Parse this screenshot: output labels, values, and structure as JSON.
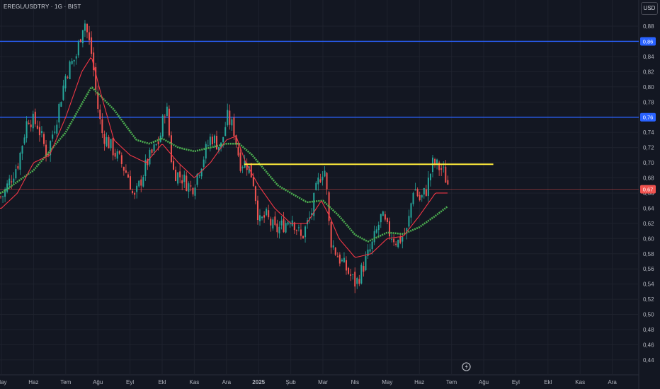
{
  "header": {
    "title": "EREGL/USDTRY · 1G · BIST",
    "currency_button": "USD"
  },
  "colors": {
    "background": "#131722",
    "grid": "#1e222d",
    "axis_text": "#b2b5be",
    "up": "#26a69a",
    "down": "#ef5350",
    "sma_fast": "#f23645",
    "sma_slow": "#4caf50",
    "resistance": "#2962ff",
    "breakout_line": "#ffeb3b",
    "current_line": "#ef5350"
  },
  "chart_data": {
    "type": "candlestick",
    "y_ticks": [
      "0,88",
      "0,86",
      "0,84",
      "0,82",
      "0,80",
      "0,78",
      "0,76",
      "0,74",
      "0,72",
      "0,70",
      "0,68",
      "0,66",
      "0,64",
      "0,62",
      "0,60",
      "0,58",
      "0,56",
      "0,54",
      "0,52",
      "0,50",
      "0,48",
      "0,46",
      "0,44"
    ],
    "ylim": [
      0.429,
      0.899
    ],
    "x_ticks": [
      "May",
      "Haz",
      "Tem",
      "Ağu",
      "Eyl",
      "Ekl",
      "Kas",
      "Ara",
      "2025",
      "Şub",
      "Mar",
      "Nis",
      "May",
      "Haz",
      "Tem",
      "Ağu",
      "Eyl",
      "Ekl",
      "Kas",
      "Ara"
    ],
    "horizontal_lines": [
      {
        "value": 0.86,
        "label": "0,86",
        "color": "#2962ff"
      },
      {
        "value": 0.76,
        "label": "0,76",
        "color": "#2962ff"
      },
      {
        "value": 0.665,
        "label": "0,67",
        "color": "#ef5350"
      }
    ],
    "trendline": {
      "from_month": 7.55,
      "to_month": 15.3,
      "value": 0.698,
      "color": "#ffeb3b"
    },
    "price_path": [
      [
        0.0,
        0.655
      ],
      [
        0.5,
        0.7
      ],
      [
        0.8,
        0.76
      ],
      [
        1.1,
        0.75
      ],
      [
        1.4,
        0.71
      ],
      [
        1.7,
        0.76
      ],
      [
        2.0,
        0.82
      ],
      [
        2.3,
        0.84
      ],
      [
        2.55,
        0.89
      ],
      [
        2.8,
        0.84
      ],
      [
        2.95,
        0.78
      ],
      [
        3.1,
        0.74
      ],
      [
        3.4,
        0.72
      ],
      [
        3.7,
        0.7
      ],
      [
        3.95,
        0.68
      ],
      [
        4.1,
        0.65
      ],
      [
        4.5,
        0.7
      ],
      [
        4.9,
        0.73
      ],
      [
        5.1,
        0.78
      ],
      [
        5.3,
        0.69
      ],
      [
        5.6,
        0.68
      ],
      [
        5.9,
        0.665
      ],
      [
        6.2,
        0.7
      ],
      [
        6.5,
        0.735
      ],
      [
        6.8,
        0.72
      ],
      [
        7.0,
        0.76
      ],
      [
        7.2,
        0.745
      ],
      [
        7.4,
        0.7
      ],
      [
        7.6,
        0.7
      ],
      [
        7.8,
        0.68
      ],
      [
        8.0,
        0.62
      ],
      [
        8.2,
        0.63
      ],
      [
        8.5,
        0.61
      ],
      [
        8.8,
        0.62
      ],
      [
        9.0,
        0.63
      ],
      [
        9.3,
        0.6
      ],
      [
        9.6,
        0.63
      ],
      [
        9.8,
        0.67
      ],
      [
        9.95,
        0.69
      ],
      [
        10.05,
        0.69
      ],
      [
        10.2,
        0.6
      ],
      [
        10.4,
        0.58
      ],
      [
        10.7,
        0.56
      ],
      [
        11.0,
        0.54
      ],
      [
        11.2,
        0.56
      ],
      [
        11.5,
        0.59
      ],
      [
        11.8,
        0.63
      ],
      [
        12.0,
        0.61
      ],
      [
        12.3,
        0.595
      ],
      [
        12.6,
        0.61
      ],
      [
        12.8,
        0.67
      ],
      [
        13.0,
        0.65
      ],
      [
        13.2,
        0.665
      ],
      [
        13.4,
        0.7
      ],
      [
        13.55,
        0.695
      ],
      [
        13.7,
        0.69
      ],
      [
        13.9,
        0.668
      ]
    ],
    "sma_fast_path": [
      [
        0.0,
        0.64
      ],
      [
        0.5,
        0.66
      ],
      [
        1.0,
        0.7
      ],
      [
        1.5,
        0.71
      ],
      [
        2.0,
        0.76
      ],
      [
        2.5,
        0.82
      ],
      [
        2.8,
        0.84
      ],
      [
        3.1,
        0.79
      ],
      [
        3.5,
        0.73
      ],
      [
        4.0,
        0.71
      ],
      [
        4.5,
        0.7
      ],
      [
        5.0,
        0.725
      ],
      [
        5.5,
        0.7
      ],
      [
        6.0,
        0.68
      ],
      [
        6.5,
        0.7
      ],
      [
        7.0,
        0.73
      ],
      [
        7.3,
        0.735
      ],
      [
        7.6,
        0.7
      ],
      [
        8.0,
        0.67
      ],
      [
        8.5,
        0.64
      ],
      [
        9.0,
        0.62
      ],
      [
        9.5,
        0.62
      ],
      [
        9.95,
        0.65
      ],
      [
        10.2,
        0.63
      ],
      [
        10.5,
        0.6
      ],
      [
        11.0,
        0.575
      ],
      [
        11.5,
        0.58
      ],
      [
        12.0,
        0.6
      ],
      [
        12.5,
        0.603
      ],
      [
        13.0,
        0.63
      ],
      [
        13.5,
        0.66
      ],
      [
        13.9,
        0.66
      ]
    ],
    "sma_slow_path": [
      [
        0.0,
        0.66
      ],
      [
        1.0,
        0.69
      ],
      [
        2.0,
        0.74
      ],
      [
        2.8,
        0.8
      ],
      [
        3.5,
        0.77
      ],
      [
        4.2,
        0.73
      ],
      [
        4.6,
        0.725
      ],
      [
        5.0,
        0.732
      ],
      [
        5.5,
        0.72
      ],
      [
        6.0,
        0.715
      ],
      [
        6.5,
        0.72
      ],
      [
        7.0,
        0.725
      ],
      [
        7.4,
        0.725
      ],
      [
        7.8,
        0.71
      ],
      [
        8.2,
        0.69
      ],
      [
        8.6,
        0.67
      ],
      [
        9.0,
        0.66
      ],
      [
        9.5,
        0.648
      ],
      [
        10.0,
        0.65
      ],
      [
        10.5,
        0.63
      ],
      [
        11.0,
        0.605
      ],
      [
        11.4,
        0.596
      ],
      [
        12.0,
        0.608
      ],
      [
        12.5,
        0.606
      ],
      [
        13.0,
        0.615
      ],
      [
        13.5,
        0.63
      ],
      [
        13.9,
        0.643
      ]
    ]
  }
}
